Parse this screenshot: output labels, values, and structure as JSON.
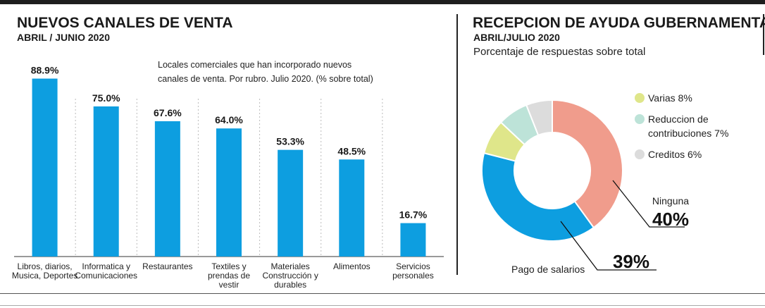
{
  "left_panel": {
    "title": "NUEVOS CANALES DE VENTA",
    "subtitle": "ABRIL / JUNIO 2020",
    "note_line1": "Locales comerciales que han incorporado nuevos",
    "note_line2": "canales de venta. Por rubro. Julio 2020. (% sobre total)"
  },
  "right_panel": {
    "title": "RECEPCION DE AYUDA GUBERNAMENTAL",
    "subtitle": "ABRIL/JULIO 2020",
    "description": "Porcentaje de respuestas sobre total"
  },
  "colors": {
    "bar": "#0d9ee0",
    "accent_dark": "#1e1e1e"
  },
  "chart_data": [
    {
      "type": "bar",
      "title": "NUEVOS CANALES DE VENTA",
      "categories": [
        [
          "Libros, diarios,",
          "Musica, Deportes"
        ],
        [
          "Informatica y",
          "Comunicaciones"
        ],
        [
          "Restaurantes"
        ],
        [
          "Textiles y",
          "prendas de",
          "vestir"
        ],
        [
          "Materiales",
          "Construcción y",
          "durables"
        ],
        [
          "Alimentos"
        ],
        [
          "Servicios",
          "personales"
        ]
      ],
      "values": [
        88.9,
        75.0,
        67.6,
        64.0,
        53.3,
        48.5,
        16.7
      ],
      "value_labels": [
        "88.9%",
        "75.0%",
        "67.6%",
        "64.0%",
        "53.3%",
        "48.5%",
        "16.7%"
      ],
      "ylim": [
        0,
        100
      ],
      "grid": false,
      "color": "#0d9ee0"
    },
    {
      "type": "pie",
      "donut": true,
      "title": "RECEPCION DE AYUDA GUBERNAMENTAL",
      "slices": [
        {
          "label": "Ninguna",
          "value": 40,
          "value_label": "40%",
          "color": "#f09c8c"
        },
        {
          "label": "Pago de salarios",
          "value": 39,
          "value_label": "39%",
          "color": "#0d9ee0"
        },
        {
          "label": "Varias",
          "value": 8,
          "value_label": "8%",
          "color": "#dfe68a"
        },
        {
          "label": "Reduccion de contribuciones",
          "value": 7,
          "value_label": "7%",
          "color": "#bde3d8"
        },
        {
          "label": "Creditos",
          "value": 6,
          "value_label": "6%",
          "color": "#dcdcdc"
        }
      ],
      "legend": [
        {
          "line1": "Varias 8%",
          "line2": "",
          "color": "#dfe68a"
        },
        {
          "line1": "Reduccion de",
          "line2": "contribuciones 7%",
          "color": "#bde3d8"
        },
        {
          "line1": "Creditos 6%",
          "line2": "",
          "color": "#dcdcdc"
        }
      ],
      "legend_placement": "top-right"
    }
  ]
}
